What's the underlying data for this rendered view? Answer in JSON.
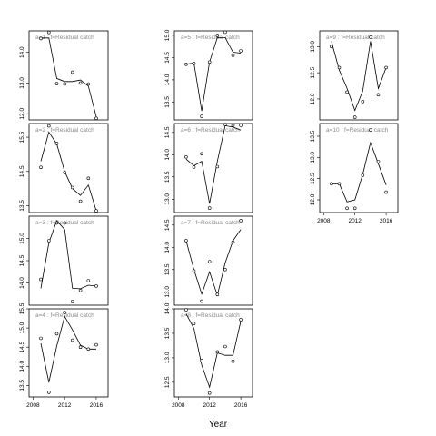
{
  "figure": {
    "xlabel": "Year"
  },
  "chart_data": [
    {
      "type": "scatter+line",
      "label": "a=3  :  f=Residual catch",
      "x": [
        2009,
        2010,
        2011,
        2012,
        2013,
        2014,
        2015,
        2016
      ],
      "points": [
        14.08,
        14.95,
        15.35,
        15.35,
        13.58,
        13.83,
        14.05,
        13.93
      ],
      "fit": [
        13.88,
        14.9,
        15.4,
        15.2,
        13.88,
        13.87,
        13.95,
        13.93
      ],
      "ylim": [
        13.5,
        15.5
      ],
      "yticks": [
        "14.0",
        "14.5",
        "15.0"
      ]
    },
    {
      "type": "scatter+line",
      "label": "a=4  :  f=Residual catch",
      "x": [
        2009,
        2010,
        2011,
        2012,
        2013,
        2014,
        2015,
        2016
      ],
      "points": [
        14.73,
        13.32,
        14.85,
        15.4,
        14.68,
        14.5,
        14.45,
        14.56
      ],
      "fit": [
        14.6,
        13.58,
        14.53,
        15.3,
        14.95,
        14.55,
        14.45,
        14.45
      ],
      "ylim": [
        13.2,
        15.5
      ],
      "yticks": [
        "13.5",
        "14.0",
        "14.5",
        "15.0",
        "15.5"
      ]
    },
    {
      "type": "scatter+line",
      "label": "a=5  :  f=Residual catch",
      "x": [
        2009,
        2010,
        2011,
        2012,
        2013,
        2014,
        2015,
        2016
      ],
      "points": [
        14.35,
        14.37,
        13.18,
        14.4,
        15.0,
        15.07,
        14.55,
        14.65
      ],
      "fit": [
        14.35,
        14.38,
        13.3,
        14.4,
        14.95,
        14.95,
        14.62,
        14.6
      ],
      "ylim": [
        13.1,
        15.1
      ],
      "yticks": [
        "13.5",
        "14.0",
        "14.5",
        "15.0"
      ]
    },
    {
      "type": "scatter+line",
      "label": "a=6  :  f=Residual catch",
      "x": [
        2009,
        2010,
        2011,
        2012,
        2013,
        2014,
        2015,
        2016
      ],
      "points": [
        13.95,
        13.72,
        14.02,
        12.8,
        13.73,
        14.68,
        14.66,
        14.66
      ],
      "fit": [
        13.9,
        13.75,
        13.85,
        12.9,
        13.85,
        14.65,
        14.62,
        14.55
      ],
      "ylim": [
        12.7,
        14.7
      ],
      "yticks": [
        "13.0",
        "13.5",
        "14.0",
        "14.5"
      ]
    },
    {
      "type": "scatter+line",
      "label": "a=7  :  f=Residual catch",
      "x": [
        2009,
        2010,
        2011,
        2012,
        2013,
        2014,
        2015,
        2016
      ],
      "points": [
        14.15,
        13.47,
        12.79,
        13.68,
        12.94,
        13.5,
        14.12,
        14.6
      ],
      "fit": [
        14.15,
        13.5,
        12.95,
        13.45,
        12.92,
        13.65,
        14.15,
        14.4
      ],
      "ylim": [
        12.7,
        14.7
      ],
      "yticks": [
        "13.0",
        "13.5",
        "14.0",
        "14.5"
      ]
    },
    {
      "type": "scatter+line",
      "label": "a=8  :  f=Residual catch",
      "x": [
        2009,
        2010,
        2011,
        2012,
        2013,
        2014,
        2015,
        2016
      ],
      "points": [
        13.98,
        13.7,
        12.94,
        12.28,
        13.12,
        13.23,
        12.93,
        13.78
      ],
      "fit": [
        13.9,
        13.6,
        12.85,
        12.4,
        13.1,
        13.05,
        13.05,
        13.75
      ],
      "ylim": [
        12.2,
        14.0
      ],
      "yticks": [
        "12.5",
        "13.0",
        "13.5",
        "14.0"
      ]
    },
    {
      "type": "scatter+line",
      "label": "a=9  :  f=Residual catch",
      "x": [
        2009,
        2010,
        2011,
        2012,
        2013,
        2014,
        2015,
        2016
      ],
      "points": [
        13.0,
        12.6,
        12.13,
        11.65,
        11.95,
        13.18,
        12.08,
        12.6
      ],
      "fit": [
        13.1,
        12.55,
        12.2,
        11.78,
        12.15,
        13.1,
        12.2,
        12.6
      ],
      "ylim": [
        11.6,
        13.3
      ],
      "yticks": [
        "12.0",
        "12.5",
        "13.0"
      ]
    },
    {
      "type": "scatter+line",
      "label": "a=10  :  f=Residual catch",
      "x": [
        2009,
        2010,
        2011,
        2012,
        2013,
        2014,
        2015,
        2016
      ],
      "points": [
        12.38,
        12.38,
        11.8,
        11.8,
        12.58,
        13.65,
        12.9,
        12.18
      ],
      "fit": [
        12.38,
        12.38,
        11.95,
        12.0,
        12.6,
        13.35,
        12.85,
        12.35
      ],
      "ylim": [
        11.7,
        13.8
      ],
      "yticks": [
        "12.0",
        "12.5",
        "13.0",
        "13.5"
      ]
    },
    {
      "type": "scatter+line",
      "label": "a=1  :  f=Residual catch",
      "x": [
        2009,
        2010,
        2011,
        2012,
        2013,
        2014,
        2015,
        2016
      ],
      "points": [
        14.45,
        14.65,
        12.98,
        12.97,
        13.35,
        13.0,
        12.97,
        11.85
      ],
      "fit": [
        14.47,
        14.47,
        13.15,
        13.05,
        13.05,
        13.1,
        12.9,
        11.9
      ],
      "ylim": [
        11.8,
        14.7
      ],
      "yticks": [
        "12.0",
        "13.0",
        "14.0"
      ]
    },
    {
      "type": "scatter+line",
      "label": "a=2  :  f=Residual catch",
      "x": [
        2009,
        2010,
        2011,
        2012,
        2013,
        2014,
        2015,
        2016
      ],
      "points": [
        14.62,
        15.83,
        15.32,
        14.47,
        14.03,
        13.63,
        14.3,
        13.35
      ],
      "fit": [
        14.8,
        15.65,
        15.3,
        14.5,
        14.0,
        13.8,
        14.1,
        13.35
      ],
      "ylim": [
        13.3,
        15.9
      ],
      "yticks": [
        "13.5",
        "14.5",
        "15.5"
      ]
    }
  ],
  "xaxis": {
    "ticks": [
      2008,
      2012,
      2016
    ],
    "labels": [
      "2008",
      "2012",
      "2016"
    ]
  }
}
